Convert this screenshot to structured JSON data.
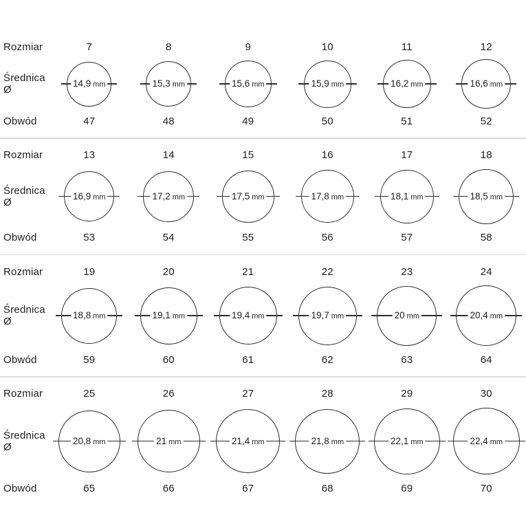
{
  "labels": {
    "size": "Rozmiar",
    "diameter": "Średnica Ø",
    "circumference": "Obwód"
  },
  "unit": "mm",
  "colors": {
    "circle_stroke": "#2c2c2c",
    "divider": "#dcdcdc",
    "text": "#1d1d1d"
  },
  "rows": [
    {
      "cells": [
        {
          "size": "7",
          "diameter": "14,9",
          "circumference": "47"
        },
        {
          "size": "8",
          "diameter": "15,3",
          "circumference": "48"
        },
        {
          "size": "9",
          "diameter": "15,6",
          "circumference": "49"
        },
        {
          "size": "10",
          "diameter": "15,9",
          "circumference": "50"
        },
        {
          "size": "11",
          "diameter": "16,2",
          "circumference": "51"
        },
        {
          "size": "12",
          "diameter": "16,6",
          "circumference": "52"
        }
      ]
    },
    {
      "cells": [
        {
          "size": "13",
          "diameter": "16,9",
          "circumference": "53"
        },
        {
          "size": "14",
          "diameter": "17,2",
          "circumference": "54"
        },
        {
          "size": "15",
          "diameter": "17,5",
          "circumference": "55"
        },
        {
          "size": "16",
          "diameter": "17,8",
          "circumference": "56"
        },
        {
          "size": "17",
          "diameter": "18,1",
          "circumference": "57"
        },
        {
          "size": "18",
          "diameter": "18,5",
          "circumference": "58"
        }
      ]
    },
    {
      "cells": [
        {
          "size": "19",
          "diameter": "18,8",
          "circumference": "59"
        },
        {
          "size": "20",
          "diameter": "19,1",
          "circumference": "60"
        },
        {
          "size": "21",
          "diameter": "19,4",
          "circumference": "61"
        },
        {
          "size": "22",
          "diameter": "19,7",
          "circumference": "62"
        },
        {
          "size": "23",
          "diameter": "20",
          "circumference": "63"
        },
        {
          "size": "24",
          "diameter": "20,4",
          "circumference": "64"
        }
      ]
    },
    {
      "cells": [
        {
          "size": "25",
          "diameter": "20,8",
          "circumference": "65"
        },
        {
          "size": "26",
          "diameter": "21",
          "circumference": "66"
        },
        {
          "size": "27",
          "diameter": "21,4",
          "circumference": "67"
        },
        {
          "size": "28",
          "diameter": "21,8",
          "circumference": "68"
        },
        {
          "size": "29",
          "diameter": "22,1",
          "circumference": "69"
        },
        {
          "size": "30",
          "diameter": "22,4",
          "circumference": "70"
        }
      ]
    }
  ]
}
